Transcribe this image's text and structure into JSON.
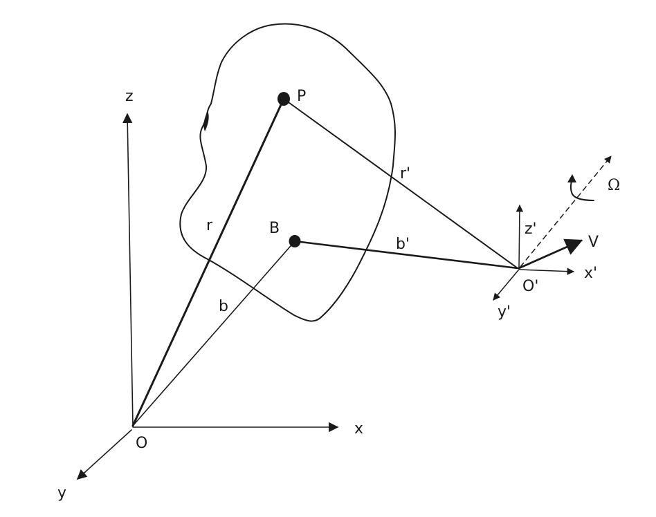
{
  "labels": {
    "z": "z",
    "x": "x",
    "y": "y",
    "origin": "O",
    "P": "P",
    "B": "B",
    "r": "r",
    "b": "b",
    "r_prime": "r'",
    "b_prime": "b'",
    "z_prime": "z'",
    "x_prime": "x'",
    "y_prime": "y'",
    "origin_prime": "O'",
    "V": "V",
    "Omega": "Ω"
  },
  "colors": {
    "ink": "#1a1a1a",
    "background": "#ffffff"
  }
}
